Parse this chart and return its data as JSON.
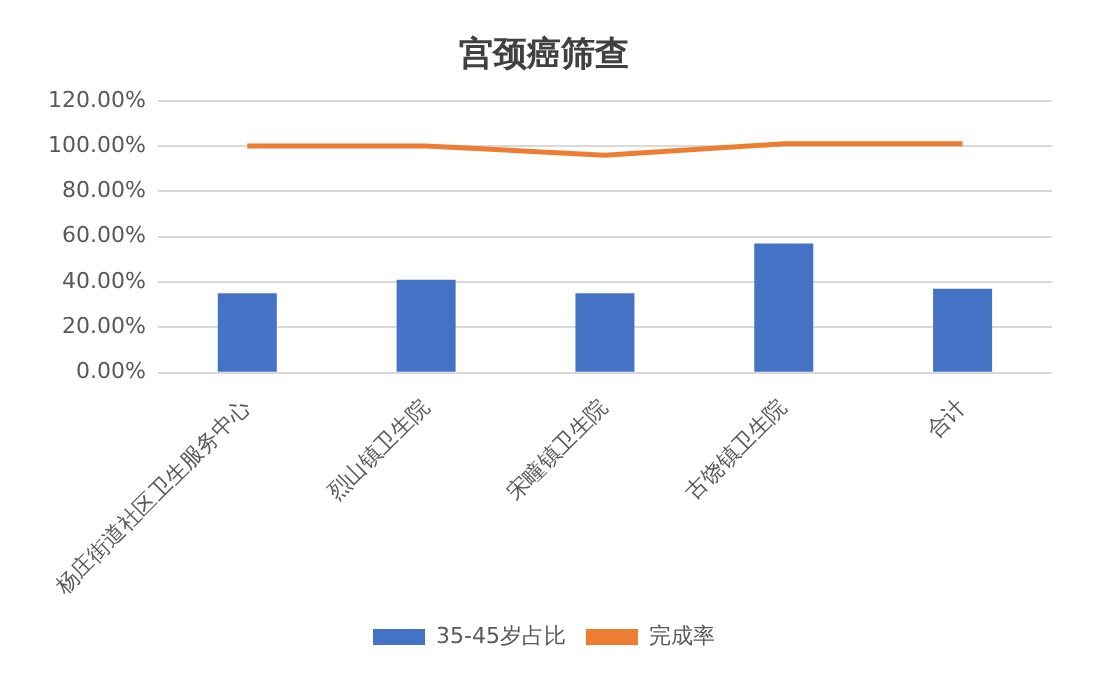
{
  "chart_data": {
    "type": "bar",
    "title": "宫颈癌筛查",
    "categories": [
      "杨庄街道社区卫生服务中心",
      "烈山镇卫生院",
      "宋疃镇卫生院",
      "古饶镇卫生院",
      "合计"
    ],
    "series": [
      {
        "name": "35-45岁占比",
        "color": "#4472c4",
        "values": [
          35,
          41,
          35,
          57,
          37
        ]
      },
      {
        "name": "完成率",
        "type": "line",
        "color": "#ed7d31",
        "values": [
          100,
          100,
          96,
          101,
          101
        ]
      }
    ],
    "ylim": [
      0,
      120
    ],
    "yticks": [
      {
        "value": 0,
        "label": "0.00%"
      },
      {
        "value": 20,
        "label": "20.00%"
      },
      {
        "value": 40,
        "label": "40.00%"
      },
      {
        "value": 60,
        "label": "60.00%"
      },
      {
        "value": 80,
        "label": "80.00%"
      },
      {
        "value": 100,
        "label": "100.00%"
      },
      {
        "value": 120,
        "label": "120.00%"
      }
    ],
    "grid": "y",
    "legend": "bottom",
    "marker": "none"
  }
}
